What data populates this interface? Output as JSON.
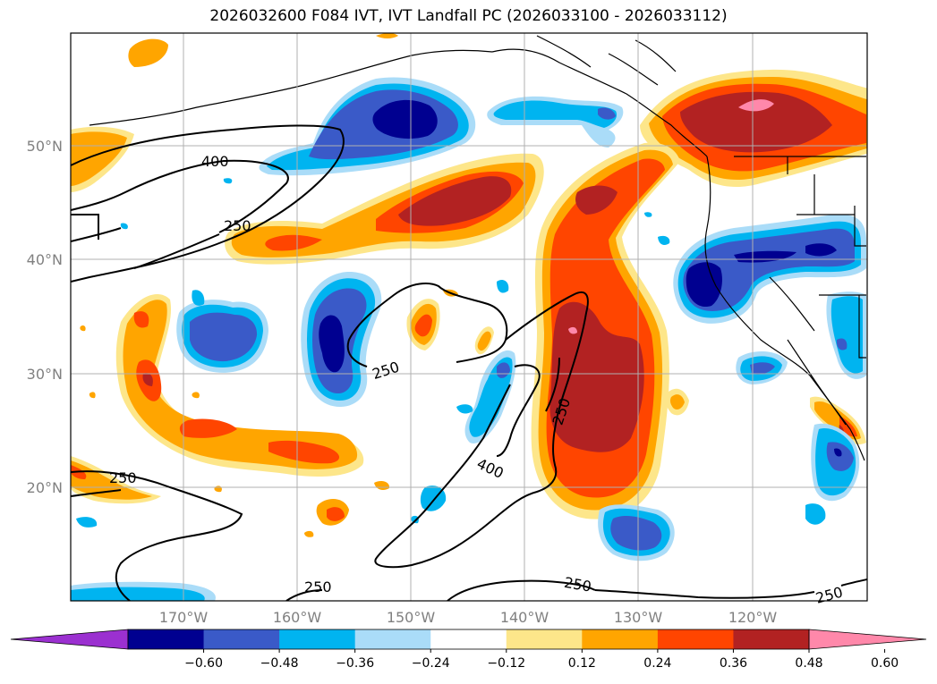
{
  "title": "2026032600 F084 IVT, IVT Landfall PC (2026033100 - 2026033112)",
  "lon_labels": [
    "170°W",
    "160°W",
    "150°W",
    "140°W",
    "130°W",
    "120°W"
  ],
  "lat_labels": [
    "50°N",
    "40°N",
    "30°N",
    "20°N"
  ],
  "colorbar": {
    "labels": [
      "−0.60",
      "−0.48",
      "−0.36",
      "−0.24",
      "−0.12",
      "0.12",
      "0.24",
      "0.36",
      "0.48",
      "0.60"
    ],
    "colors": [
      "#9b30d0",
      "#000090",
      "#3a5ac8",
      "#00b4f0",
      "#aadcf8",
      "#ffffff",
      "#fde68a",
      "#ffa500",
      "#ff4500",
      "#b22222",
      "#ff88aa"
    ]
  },
  "contour_labels": [
    "400",
    "250",
    "250",
    "250",
    "400",
    "250",
    "250",
    "250",
    "250"
  ],
  "palette": {
    "pink": "#ff88aa",
    "dark_red": "#b22222",
    "red_orange": "#ff4500",
    "orange": "#ffa500",
    "yellow": "#fde68a",
    "light_blue": "#aadcf8",
    "cyan": "#00b4f0",
    "blue": "#3a5ac8",
    "navy": "#000090"
  }
}
